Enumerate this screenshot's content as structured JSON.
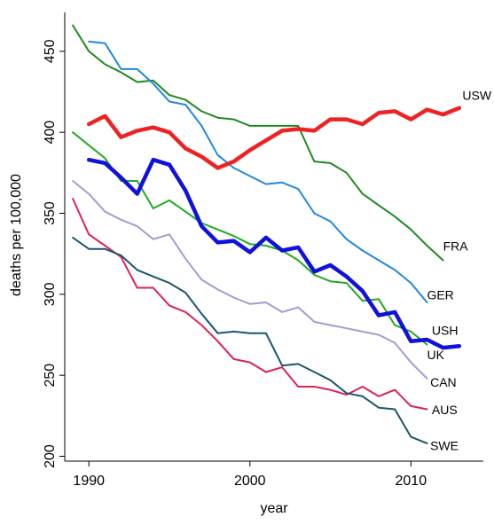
{
  "chart_data": {
    "type": "line",
    "title": "",
    "xlabel": "year",
    "ylabel": "deaths per 100,000",
    "xlim": [
      1988.5,
      2014.5
    ],
    "ylim": [
      197,
      474
    ],
    "x_ticks": [
      1990,
      2000,
      2010
    ],
    "y_ticks": [
      200,
      250,
      300,
      350,
      400,
      450
    ],
    "x_tick_labels": [
      "1990",
      "2000",
      "2010"
    ],
    "y_tick_labels": [
      "200",
      "250",
      "300",
      "350",
      "400",
      "450"
    ],
    "grid": false,
    "legend": "direct labels at line ends",
    "series": [
      {
        "name": "USW",
        "color": "#ee2222",
        "width": 4.5,
        "label_at": [
          2013.2,
          422
        ],
        "x": [
          1990,
          1991,
          1992,
          1993,
          1994,
          1995,
          1996,
          1997,
          1998,
          1999,
          2000,
          2001,
          2002,
          2003,
          2004,
          2005,
          2006,
          2007,
          2008,
          2009,
          2010,
          2011,
          2012,
          2013
        ],
        "y": [
          405,
          410,
          397,
          401,
          403,
          400,
          390,
          385,
          378,
          382,
          389,
          395,
          401,
          402,
          401,
          408,
          408,
          405,
          412,
          413,
          408,
          414,
          411,
          415
        ]
      },
      {
        "name": "FRA",
        "color": "#1f8a1f",
        "width": 2,
        "label_at": [
          2012.0,
          329
        ],
        "x": [
          1989,
          1990,
          1991,
          1992,
          1993,
          1994,
          1995,
          1996,
          1997,
          1998,
          1999,
          2000,
          2001,
          2002,
          2003,
          2004,
          2005,
          2006,
          2007,
          2008,
          2009,
          2010,
          2011,
          2012
        ],
        "y": [
          466,
          450,
          442,
          437,
          431,
          432,
          423,
          420,
          413,
          409,
          408,
          404,
          404,
          404,
          404,
          382,
          381,
          375,
          362,
          355,
          348,
          340,
          330,
          321
        ]
      },
      {
        "name": "GER",
        "color": "#2288dd",
        "width": 2,
        "label_at": [
          2011.0,
          299
        ],
        "x": [
          1990,
          1991,
          1992,
          1993,
          1994,
          1995,
          1996,
          1997,
          1998,
          1999,
          2000,
          2001,
          2002,
          2003,
          2004,
          2005,
          2006,
          2007,
          2008,
          2009,
          2010,
          2011
        ],
        "y": [
          456,
          455,
          439,
          439,
          430,
          419,
          417,
          404,
          386,
          378,
          373,
          368,
          369,
          365,
          350,
          345,
          334,
          327,
          321,
          315,
          307,
          295
        ]
      },
      {
        "name": "USH",
        "color": "#1111dd",
        "width": 4.5,
        "label_at": [
          2011.3,
          277
        ],
        "x": [
          1990,
          1991,
          1992,
          1993,
          1994,
          1995,
          1996,
          1997,
          1998,
          1999,
          2000,
          2001,
          2002,
          2003,
          2004,
          2005,
          2006,
          2007,
          2008,
          2009,
          2010,
          2011,
          2012,
          2013
        ],
        "y": [
          383,
          381,
          372,
          362,
          383,
          380,
          364,
          342,
          332,
          333,
          326,
          335,
          327,
          329,
          314,
          318,
          311,
          302,
          287,
          289,
          271,
          272,
          267,
          268
        ]
      },
      {
        "name": "UK",
        "color": "#22aa22",
        "width": 2,
        "label_at": [
          2011.0,
          262
        ],
        "x": [
          1989,
          1990,
          1991,
          1992,
          1993,
          1994,
          1995,
          1996,
          1997,
          1998,
          1999,
          2000,
          2001,
          2002,
          2003,
          2004,
          2005,
          2006,
          2007,
          2008,
          2009,
          2010,
          2011
        ],
        "y": [
          400,
          392,
          384,
          370,
          370,
          353,
          358,
          351,
          344,
          340,
          336,
          331,
          330,
          327,
          321,
          312,
          308,
          307,
          296,
          297,
          281,
          277,
          269
        ]
      },
      {
        "name": "CAN",
        "color": "#a899d4",
        "width": 2,
        "label_at": [
          2011.2,
          245
        ],
        "x": [
          1989,
          1990,
          1991,
          1992,
          1993,
          1994,
          1995,
          1996,
          1997,
          1998,
          1999,
          2000,
          2001,
          2002,
          2003,
          2004,
          2005,
          2006,
          2007,
          2008,
          2009,
          2010,
          2011
        ],
        "y": [
          370,
          362,
          351,
          346,
          342,
          334,
          337,
          322,
          309,
          303,
          298,
          294,
          295,
          289,
          292,
          283,
          281,
          279,
          277,
          275,
          270,
          258,
          248
        ]
      },
      {
        "name": "AUS",
        "color": "#dd2255",
        "width": 2,
        "label_at": [
          2011.3,
          228
        ],
        "x": [
          1989,
          1990,
          1991,
          1992,
          1993,
          1994,
          1995,
          1996,
          1997,
          1998,
          1999,
          2000,
          2001,
          2002,
          2003,
          2004,
          2005,
          2006,
          2007,
          2008,
          2009,
          2010,
          2011
        ],
        "y": [
          359,
          337,
          330,
          323,
          304,
          304,
          293,
          289,
          281,
          271,
          260,
          258,
          252,
          255,
          243,
          243,
          241,
          238,
          243,
          237,
          241,
          231,
          229
        ]
      },
      {
        "name": "SWE",
        "color": "#1b5571",
        "width": 2,
        "label_at": [
          2011.2,
          206
        ],
        "x": [
          1989,
          1990,
          1991,
          1992,
          1993,
          1994,
          1995,
          1996,
          1997,
          1998,
          1999,
          2000,
          2001,
          2002,
          2003,
          2004,
          2005,
          2006,
          2007,
          2008,
          2009,
          2010,
          2011
        ],
        "y": [
          335,
          328,
          328,
          324,
          315,
          311,
          307,
          301,
          288,
          276,
          277,
          276,
          276,
          256,
          257,
          252,
          247,
          239,
          237,
          230,
          229,
          212,
          208
        ]
      }
    ]
  }
}
